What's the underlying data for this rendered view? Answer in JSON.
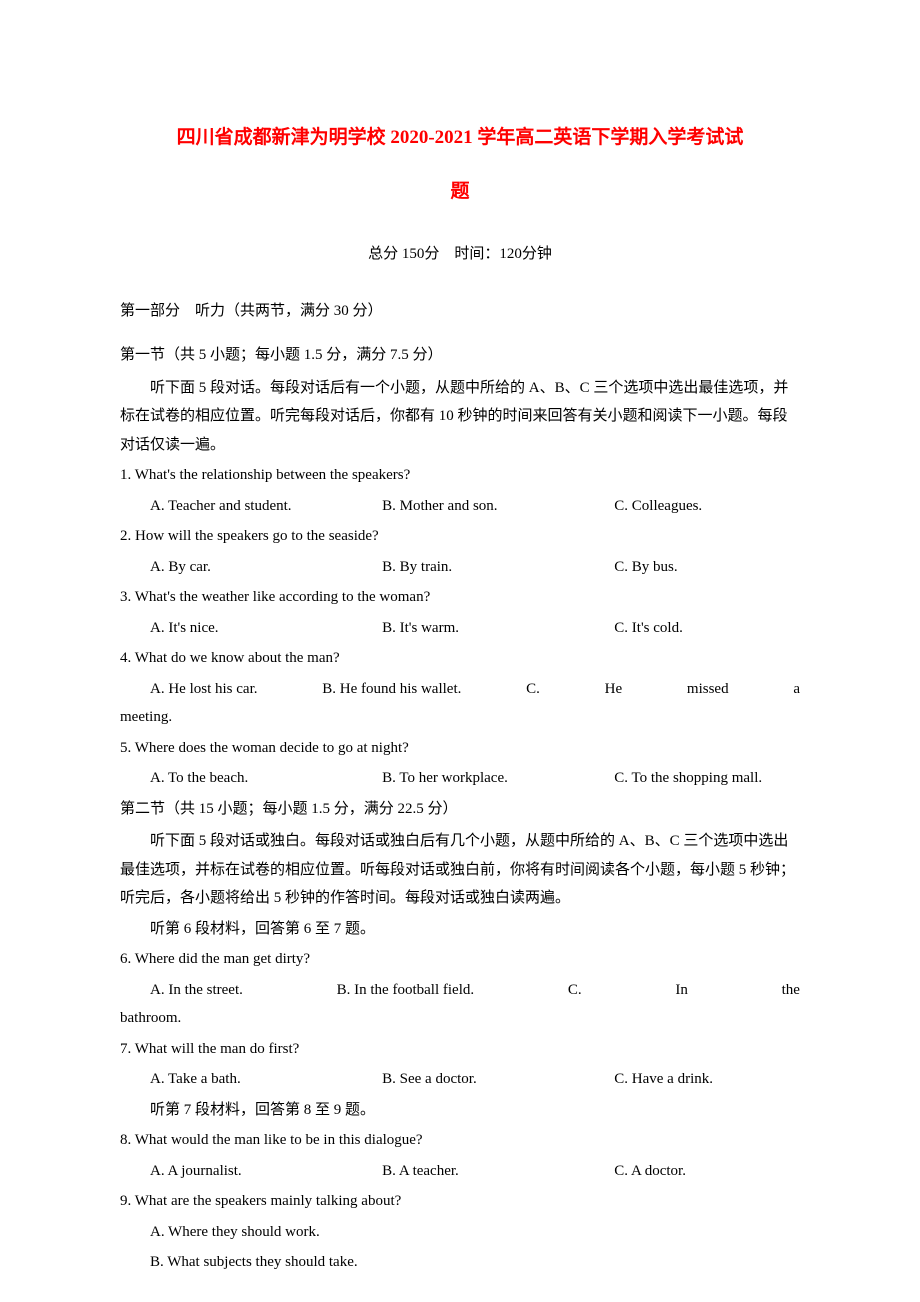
{
  "title_line1": "四川省成都新津为明学校 2020-2021 学年高二英语下学期入学考试试",
  "title_line2": "题",
  "subtitle": "总分 150分　时间：120分钟",
  "section1_header": "第一部分　听力（共两节，满分 30 分）",
  "subsection1": "第一节（共 5 小题；每小题 1.5 分，满分 7.5 分）",
  "instruction1": "听下面 5 段对话。每段对话后有一个小题，从题中所给的 A、B、C 三个选项中选出最佳选项，并标在试卷的相应位置。听完每段对话后，你都有 10 秒钟的时间来回答有关小题和阅读下一小题。每段对话仅读一遍。",
  "q1": "1. What's the relationship between the speakers?",
  "q1a": "A. Teacher and student.",
  "q1b": "B. Mother and son.",
  "q1c": "C. Colleagues.",
  "q2": "2. How will the speakers go to the seaside?",
  "q2a": "A. By car.",
  "q2b": "B. By train.",
  "q2c": "C. By bus.",
  "q3": "3. What's the weather like according to the woman?",
  "q3a": "A. It's nice.",
  "q3b": "B. It's warm.",
  "q3c": "C. It's cold.",
  "q4": "4. What do we know about the man?",
  "q4a": "A. He lost his car.",
  "q4b": "B. He found his wallet.",
  "q4c_1": "C.",
  "q4c_2": "He",
  "q4c_3": "missed",
  "q4c_4": "a",
  "q4_cont": "meeting.",
  "q5": "5. Where does the woman decide to go at night?",
  "q5a": "A. To the beach.",
  "q5b": "B. To her workplace.",
  "q5c": "C. To the shopping mall.",
  "subsection2": "第二节（共 15 小题；每小题 1.5 分，满分 22.5 分）",
  "instruction2": "听下面 5 段对话或独白。每段对话或独白后有几个小题，从题中所给的 A、B、C 三个选项中选出最佳选项，并标在试卷的相应位置。听每段对话或独白前，你将有时间阅读各个小题，每小题 5 秒钟；听完后，各小题将给出 5 秒钟的作答时间。每段对话或独白读两遍。",
  "material6": "听第 6 段材料，回答第 6 至 7 题。",
  "q6": "6. Where did the man get dirty?",
  "q6a": "A. In the street.",
  "q6b": "B. In the football field.",
  "q6c_1": "C.",
  "q6c_2": "In",
  "q6c_3": "the",
  "q6_cont": "bathroom.",
  "q7": "7. What will the man do first?",
  "q7a": "A. Take a bath.",
  "q7b": "B. See a doctor.",
  "q7c": "C. Have a drink.",
  "material7": "听第 7 段材料，回答第 8 至 9 题。",
  "q8": "8. What would the man like to be in this dialogue?",
  "q8a": "A. A journalist.",
  "q8b": "B. A teacher.",
  "q8c": "C. A doctor.",
  "q9": "9. What are the speakers mainly talking about?",
  "q9a": "A. Where they should work.",
  "q9b": "B. What subjects they should take."
}
